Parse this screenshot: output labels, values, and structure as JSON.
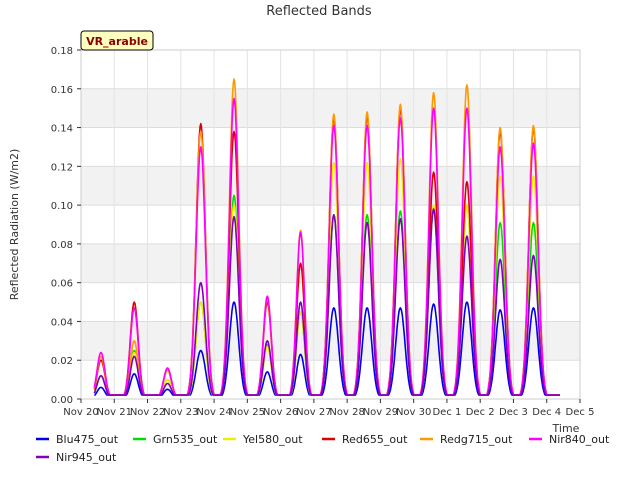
{
  "chart_data": {
    "type": "line",
    "title": "Reflected Bands",
    "ylabel": "Reflected Radiation (W/m2)",
    "xlabel": "Time",
    "site_label": "VR_arable",
    "ylim": [
      0,
      0.18
    ],
    "yticks": [
      "0.00",
      "0.02",
      "0.04",
      "0.06",
      "0.08",
      "0.10",
      "0.12",
      "0.14",
      "0.16",
      "0.18"
    ],
    "xlim": [
      0,
      15
    ],
    "xticks": [
      "Nov 20",
      "Nov 21",
      "Nov 22",
      "Nov 23",
      "Nov 24",
      "Nov 25",
      "Nov 26",
      "Nov 27",
      "Nov 28",
      "Nov 29",
      "Nov 30",
      "Dec 1",
      "Dec 2",
      "Dec 3",
      "Dec 4",
      "Dec 5"
    ],
    "grid": true,
    "legend_position": "bottom",
    "daily_peaks": {
      "days": [
        0.6,
        1.6,
        2.6,
        3.6,
        4.6,
        5.6,
        6.6,
        7.6,
        8.6,
        9.6,
        10.6,
        11.6,
        12.6,
        13.6
      ],
      "width_days": [
        0.12,
        0.12,
        0.12,
        0.14,
        0.14,
        0.12,
        0.12,
        0.14,
        0.14,
        0.14,
        0.14,
        0.14,
        0.14,
        0.14
      ],
      "night_value": 0.002
    },
    "series": [
      {
        "name": "Blu475_out",
        "color": "#0000ee",
        "peaks": [
          0.006,
          0.013,
          0.005,
          0.025,
          0.05,
          0.014,
          0.023,
          0.047,
          0.047,
          0.047,
          0.049,
          0.05,
          0.046,
          0.047
        ]
      },
      {
        "name": "Grn535_out",
        "color": "#00dd00",
        "peaks": [
          0.012,
          0.025,
          0.01,
          0.05,
          0.105,
          0.028,
          0.045,
          0.095,
          0.095,
          0.097,
          0.098,
          0.1,
          0.091,
          0.091
        ]
      },
      {
        "name": "Yel580_out",
        "color": "#eeee00",
        "peaks": [
          0.012,
          0.024,
          0.01,
          0.05,
          0.1,
          0.027,
          0.045,
          0.122,
          0.122,
          0.124,
          0.1,
          0.1,
          0.115,
          0.115
        ]
      },
      {
        "name": "Red655_out",
        "color": "#dd0000",
        "peaks": [
          0.02,
          0.05,
          0.015,
          0.142,
          0.138,
          0.05,
          0.07,
          0.145,
          0.146,
          0.15,
          0.117,
          0.112,
          0.138,
          0.14
        ]
      },
      {
        "name": "Redg715_out",
        "color": "#ff9900",
        "peaks": [
          0.022,
          0.03,
          0.015,
          0.138,
          0.165,
          0.052,
          0.087,
          0.147,
          0.148,
          0.152,
          0.158,
          0.162,
          0.14,
          0.141
        ]
      },
      {
        "name": "Nir840_out",
        "color": "#ff00ff",
        "peaks": [
          0.024,
          0.047,
          0.016,
          0.13,
          0.155,
          0.053,
          0.086,
          0.141,
          0.141,
          0.145,
          0.15,
          0.15,
          0.13,
          0.132
        ]
      },
      {
        "name": "Nir945_out",
        "color": "#8000c0",
        "peaks": [
          0.012,
          0.022,
          0.008,
          0.06,
          0.094,
          0.03,
          0.05,
          0.095,
          0.091,
          0.093,
          0.098,
          0.084,
          0.072,
          0.074
        ]
      }
    ]
  }
}
